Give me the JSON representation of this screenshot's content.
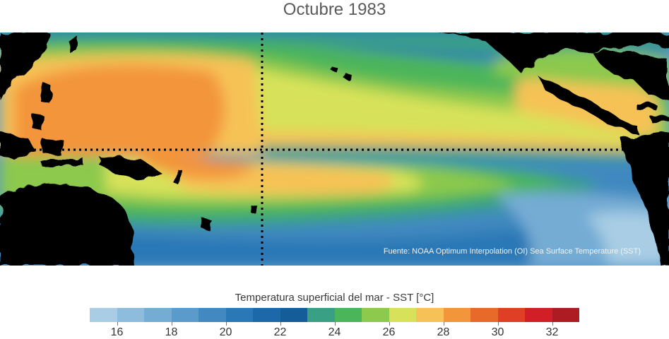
{
  "title": "Octubre 1983",
  "source_note": "Fuente: NOAA Optimum Interpolation (OI) Sea Surface Temperature (SST)",
  "colorbar": {
    "label": "Temperatura superficial del mar - SST  [°C]",
    "min": 15,
    "max": 33,
    "colors": [
      "#a8cde4",
      "#8dbcdd",
      "#74acd4",
      "#5b9bcb",
      "#4189c0",
      "#2a78b6",
      "#1c68a9",
      "#145d98",
      "#3aa085",
      "#4bb55a",
      "#8cc94d",
      "#d7e25a",
      "#f6c257",
      "#f3953a",
      "#e86a2a",
      "#df4025",
      "#d21f27",
      "#ad1c22"
    ],
    "ticks": [
      "16",
      "18",
      "20",
      "22",
      "24",
      "26",
      "28",
      "30",
      "32"
    ]
  },
  "map": {
    "region": "Pacífico tropical",
    "land_color": "#000000",
    "reference_lines": [
      "equator",
      "date-line"
    ]
  }
}
